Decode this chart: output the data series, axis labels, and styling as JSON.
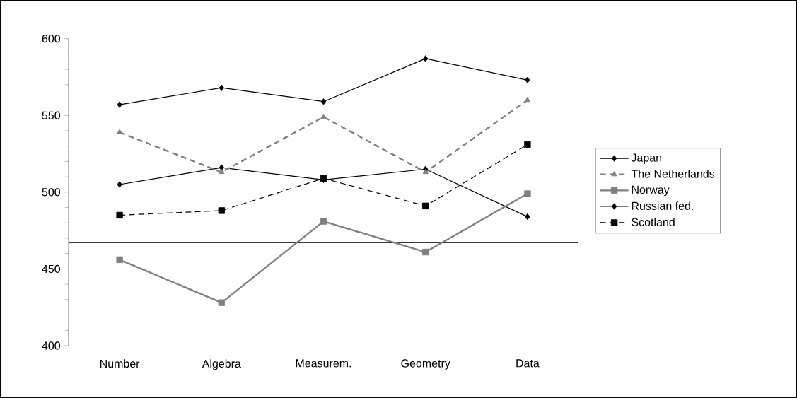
{
  "chart_data": {
    "type": "line",
    "categories": [
      "Number",
      "Algebra",
      "Measurem.",
      "Geometry",
      "Data"
    ],
    "series": [
      {
        "name": "Japan",
        "color": "#000000",
        "marker": "diamond",
        "line_style": "solid",
        "values": [
          557,
          568,
          559,
          587,
          573
        ]
      },
      {
        "name": "The Netherlands",
        "color": "#808080",
        "marker": "triangle",
        "line_style": "dashed",
        "values": [
          539,
          513,
          549,
          513,
          560
        ]
      },
      {
        "name": "Norway",
        "color": "#808080",
        "marker": "square",
        "line_style": "solid",
        "values": [
          456,
          428,
          481,
          461,
          499
        ]
      },
      {
        "name": "Russian fed.",
        "color": "#000000",
        "marker": "diamond",
        "line_style": "solid",
        "values": [
          505,
          516,
          508,
          515,
          484
        ]
      },
      {
        "name": "Scotland",
        "color": "#000000",
        "marker": "square",
        "line_style": "dashed",
        "values": [
          485,
          488,
          509,
          491,
          531
        ]
      }
    ],
    "ylim": [
      400,
      600
    ],
    "yticks": [
      400,
      450,
      500,
      550,
      600
    ],
    "ref_lines": [
      {
        "axis": "y",
        "value": 467,
        "color": "#000000"
      }
    ],
    "legend": "right",
    "grid": false
  }
}
